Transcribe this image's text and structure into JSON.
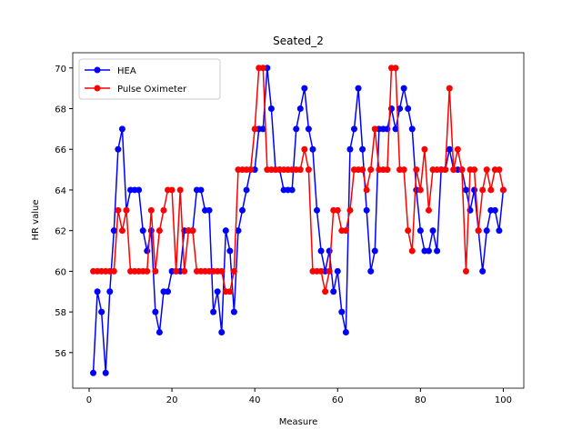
{
  "chart_data": {
    "type": "line",
    "title": "Seated_2",
    "x_label": "Measure",
    "y_label": "HR value",
    "x": [
      1,
      2,
      3,
      4,
      5,
      6,
      7,
      8,
      9,
      10,
      11,
      12,
      13,
      14,
      15,
      16,
      17,
      18,
      19,
      20,
      21,
      22,
      23,
      24,
      25,
      26,
      27,
      28,
      29,
      30,
      31,
      32,
      33,
      34,
      35,
      36,
      37,
      38,
      39,
      40,
      41,
      42,
      43,
      44,
      45,
      46,
      47,
      48,
      49,
      50,
      51,
      52,
      53,
      54,
      55,
      56,
      57,
      58,
      59,
      60,
      61,
      62,
      63,
      64,
      65,
      66,
      67,
      68,
      69,
      70,
      71,
      72,
      73,
      74,
      75,
      76,
      77,
      78,
      79,
      80,
      81,
      82,
      83,
      84,
      85,
      86,
      87,
      88,
      89,
      90,
      91,
      92,
      93,
      94,
      95,
      96,
      97,
      98,
      99,
      100
    ],
    "series": [
      {
        "name": "HEA",
        "color": "#0000ff",
        "values": [
          55,
          59,
          58,
          55,
          59,
          62,
          66,
          67,
          63,
          64,
          64,
          64,
          62,
          61,
          62,
          58,
          57,
          59,
          59,
          60,
          60,
          60,
          62,
          62,
          62,
          64,
          64,
          63,
          63,
          58,
          59,
          57,
          62,
          61,
          58,
          62,
          63,
          64,
          65,
          65,
          67,
          67,
          70,
          68,
          65,
          65,
          64,
          64,
          64,
          67,
          68,
          69,
          67,
          66,
          63,
          61,
          60,
          61,
          59,
          60,
          58,
          57,
          66,
          67,
          69,
          66,
          63,
          60,
          61,
          67,
          67,
          67,
          68,
          67,
          68,
          69,
          68,
          67,
          64,
          62,
          61,
          61,
          62,
          61,
          65,
          65,
          66,
          65,
          65,
          65,
          64,
          63,
          64,
          62,
          60,
          62,
          63,
          63,
          62,
          64
        ]
      },
      {
        "name": "Pulse Oximeter",
        "color": "#ff0000",
        "values": [
          60,
          60,
          60,
          60,
          60,
          60,
          63,
          62,
          63,
          60,
          60,
          60,
          60,
          60,
          63,
          60,
          62,
          63,
          64,
          64,
          60,
          64,
          60,
          62,
          62,
          60,
          60,
          60,
          60,
          60,
          60,
          60,
          59,
          59,
          60,
          65,
          65,
          65,
          65,
          67,
          70,
          70,
          65,
          65,
          65,
          65,
          65,
          65,
          65,
          65,
          65,
          66,
          65,
          60,
          60,
          60,
          59,
          60,
          63,
          63,
          62,
          62,
          63,
          65,
          65,
          65,
          64,
          65,
          67,
          65,
          65,
          65,
          70,
          70,
          65,
          65,
          62,
          61,
          65,
          64,
          66,
          63,
          65,
          65,
          65,
          65,
          69,
          65,
          66,
          65,
          60,
          65,
          65,
          62,
          64,
          65,
          64,
          65,
          65,
          64
        ]
      }
    ],
    "xlim": [
      -3.95,
      104.95
    ],
    "ylim": [
      54.25,
      70.75
    ],
    "xticks": [
      0,
      20,
      40,
      60,
      80,
      100
    ],
    "yticks": [
      56,
      58,
      60,
      62,
      64,
      66,
      68,
      70
    ],
    "legend": "upper left"
  }
}
